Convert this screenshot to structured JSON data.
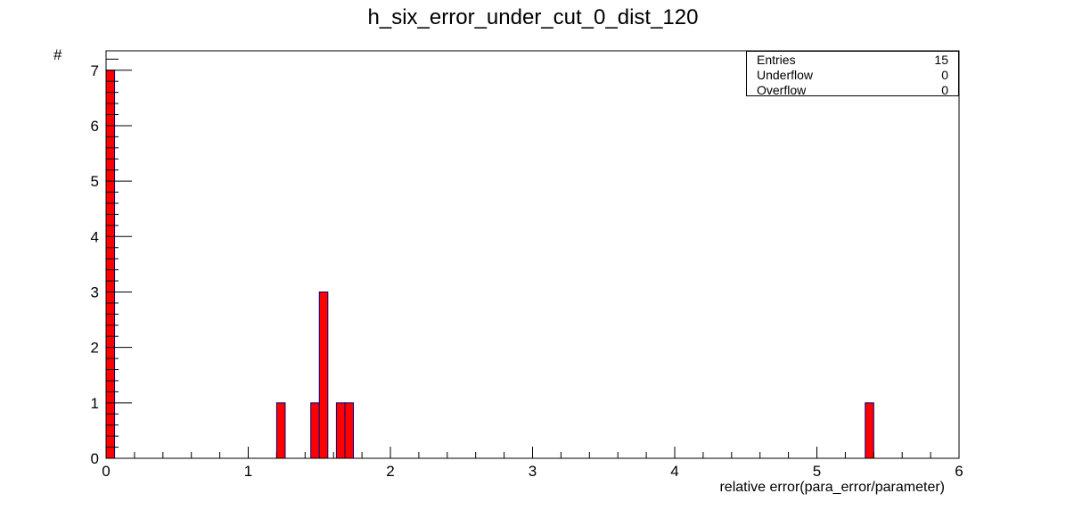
{
  "chart_data": {
    "type": "bar",
    "title": "h_six_error_under_cut_0_dist_120",
    "xlabel": "relative error(para_error/parameter)",
    "ylabel": "#",
    "xlim": [
      0,
      6
    ],
    "ylim": [
      0,
      7.35
    ],
    "bin_width": 0.06,
    "x_ticks": [
      "0",
      "1",
      "2",
      "3",
      "4",
      "5",
      "6"
    ],
    "y_ticks": [
      "0",
      "1",
      "2",
      "3",
      "4",
      "5",
      "6",
      "7"
    ],
    "bins": [
      {
        "x_low": 0.0,
        "x_high": 0.06,
        "count": 7
      },
      {
        "x_low": 1.2,
        "x_high": 1.26,
        "count": 1
      },
      {
        "x_low": 1.44,
        "x_high": 1.5,
        "count": 1
      },
      {
        "x_low": 1.5,
        "x_high": 1.56,
        "count": 3
      },
      {
        "x_low": 1.62,
        "x_high": 1.68,
        "count": 1
      },
      {
        "x_low": 1.68,
        "x_high": 1.74,
        "count": 1
      },
      {
        "x_low": 5.34,
        "x_high": 5.4,
        "count": 1
      }
    ],
    "fill_color": "#ff0000",
    "line_color": "#000080",
    "grid": false,
    "legend_position": "top-right"
  },
  "stats": [
    {
      "label": "Entries",
      "value": "15"
    },
    {
      "label": "Underflow",
      "value": "0"
    },
    {
      "label": "Overflow",
      "value": "0"
    }
  ]
}
